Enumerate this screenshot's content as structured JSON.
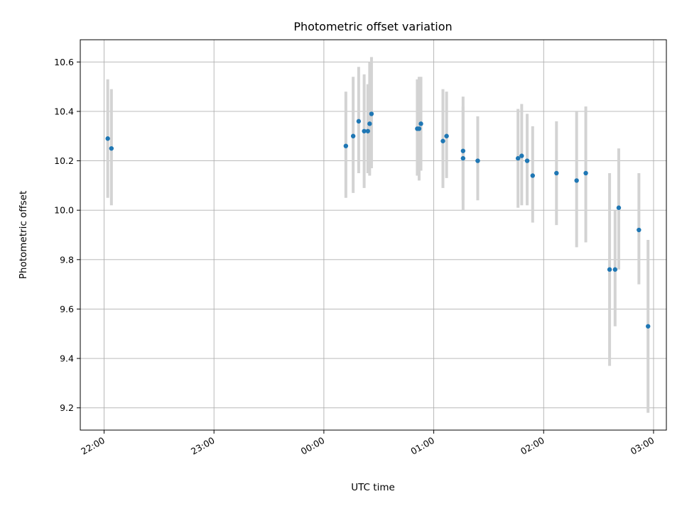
{
  "chart_data": {
    "type": "scatter",
    "title": "Photometric offset variation",
    "xlabel": "UTC time",
    "ylabel": "Photometric offset",
    "xlim": [
      "21:47",
      "03:07"
    ],
    "ylim": [
      9.11,
      10.69
    ],
    "x_ticks": [
      "22:00",
      "23:00",
      "00:00",
      "01:00",
      "02:00",
      "03:00"
    ],
    "y_ticks": [
      "9.2",
      "9.4",
      "9.6",
      "9.8",
      "10.0",
      "10.2",
      "10.4",
      "10.6"
    ],
    "grid": true,
    "marker_color": "#1f77b4",
    "errorbar_color": "#d3d3d3",
    "points": [
      {
        "t": "22:02",
        "y": 10.29,
        "lo": 10.05,
        "hi": 10.53
      },
      {
        "t": "22:04",
        "y": 10.25,
        "lo": 10.02,
        "hi": 10.49
      },
      {
        "t": "00:12",
        "y": 10.26,
        "lo": 10.05,
        "hi": 10.48
      },
      {
        "t": "00:16",
        "y": 10.3,
        "lo": 10.07,
        "hi": 10.54
      },
      {
        "t": "00:19",
        "y": 10.36,
        "lo": 10.15,
        "hi": 10.58
      },
      {
        "t": "00:22",
        "y": 10.32,
        "lo": 10.09,
        "hi": 10.55
      },
      {
        "t": "00:24",
        "y": 10.32,
        "lo": 10.15,
        "hi": 10.51
      },
      {
        "t": "00:25",
        "y": 10.35,
        "lo": 10.14,
        "hi": 10.6
      },
      {
        "t": "00:26",
        "y": 10.39,
        "lo": 10.17,
        "hi": 10.62
      },
      {
        "t": "00:51",
        "y": 10.33,
        "lo": 10.14,
        "hi": 10.53
      },
      {
        "t": "00:52",
        "y": 10.33,
        "lo": 10.12,
        "hi": 10.54
      },
      {
        "t": "00:53",
        "y": 10.35,
        "lo": 10.16,
        "hi": 10.54
      },
      {
        "t": "01:05",
        "y": 10.28,
        "lo": 10.09,
        "hi": 10.49
      },
      {
        "t": "01:07",
        "y": 10.3,
        "lo": 10.13,
        "hi": 10.48
      },
      {
        "t": "01:16",
        "y": 10.24,
        "lo": 10.04,
        "hi": 10.46
      },
      {
        "t": "01:16",
        "y": 10.21,
        "lo": 10.0,
        "hi": 10.42
      },
      {
        "t": "01:24",
        "y": 10.2,
        "lo": 10.04,
        "hi": 10.38
      },
      {
        "t": "01:46",
        "y": 10.21,
        "lo": 10.01,
        "hi": 10.41
      },
      {
        "t": "01:48",
        "y": 10.22,
        "lo": 10.02,
        "hi": 10.43
      },
      {
        "t": "01:51",
        "y": 10.2,
        "lo": 10.02,
        "hi": 10.39
      },
      {
        "t": "01:54",
        "y": 10.14,
        "lo": 9.95,
        "hi": 10.34
      },
      {
        "t": "02:07",
        "y": 10.15,
        "lo": 9.94,
        "hi": 10.36
      },
      {
        "t": "02:18",
        "y": 10.12,
        "lo": 9.85,
        "hi": 10.4
      },
      {
        "t": "02:23",
        "y": 10.15,
        "lo": 9.87,
        "hi": 10.42
      },
      {
        "t": "02:36",
        "y": 9.76,
        "lo": 9.37,
        "hi": 10.15
      },
      {
        "t": "02:39",
        "y": 9.76,
        "lo": 9.53,
        "hi": 10.0
      },
      {
        "t": "02:41",
        "y": 10.01,
        "lo": 9.76,
        "hi": 10.25
      },
      {
        "t": "02:52",
        "y": 9.92,
        "lo": 9.7,
        "hi": 10.15
      },
      {
        "t": "02:57",
        "y": 9.53,
        "lo": 9.18,
        "hi": 9.88
      }
    ]
  }
}
